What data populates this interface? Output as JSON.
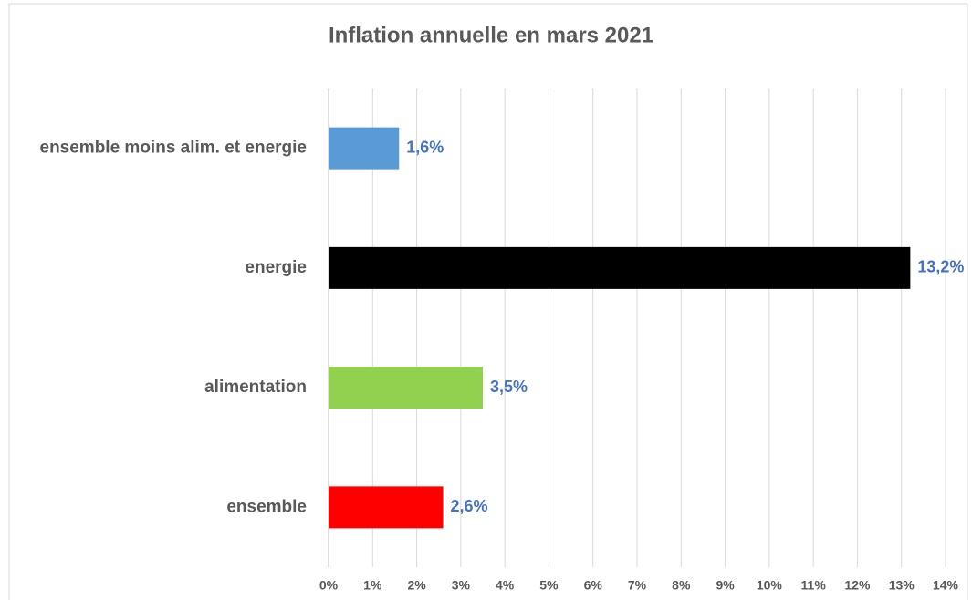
{
  "chart_data": {
    "type": "hbar",
    "title": "Inflation annuelle en mars 2021",
    "categories": [
      "ensemble moins alim. et energie",
      "energie",
      "alimentation",
      "ensemble"
    ],
    "values": [
      1.6,
      13.2,
      3.5,
      2.6
    ],
    "value_labels": [
      "1,6%",
      "13,2%",
      "3,5%",
      "2,6%"
    ],
    "colors": [
      "#5b9bd5",
      "#000000",
      "#92d050",
      "#ff0000"
    ],
    "xlim": [
      0,
      14
    ],
    "xticks": [
      {
        "value": 0,
        "label": "0%"
      },
      {
        "value": 1,
        "label": "1%"
      },
      {
        "value": 2,
        "label": "2%"
      },
      {
        "value": 3,
        "label": "3%"
      },
      {
        "value": 4,
        "label": "4%"
      },
      {
        "value": 5,
        "label": "5%"
      },
      {
        "value": 6,
        "label": "6%"
      },
      {
        "value": 7,
        "label": "7%"
      },
      {
        "value": 8,
        "label": "8%"
      },
      {
        "value": 9,
        "label": "9%"
      },
      {
        "value": 10,
        "label": "10%"
      },
      {
        "value": 11,
        "label": "11%"
      },
      {
        "value": 12,
        "label": "12%"
      },
      {
        "value": 13,
        "label": "13%"
      },
      {
        "value": 14,
        "label": "14%"
      }
    ],
    "grid": true
  }
}
